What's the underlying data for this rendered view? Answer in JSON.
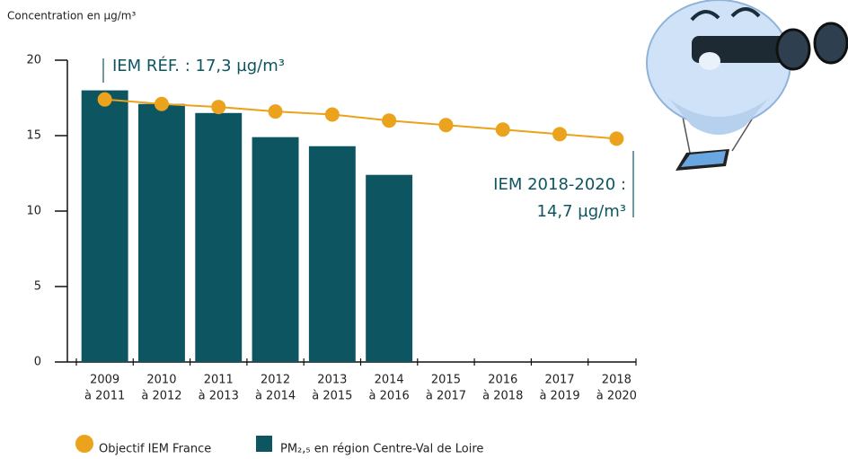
{
  "chart_data": {
    "type": "bar",
    "y_label": "Concentration en µg/m³",
    "categories": [
      [
        "2009",
        "à 2011"
      ],
      [
        "2010",
        "à 2012"
      ],
      [
        "2011",
        "à 2013"
      ],
      [
        "2012",
        "à 2014"
      ],
      [
        "2013",
        "à 2015"
      ],
      [
        "2014",
        "à 2016"
      ],
      [
        "2015",
        "à 2017"
      ],
      [
        "2016",
        "à 2018"
      ],
      [
        "2017",
        "à 2019"
      ],
      [
        "2018",
        "à 2020"
      ]
    ],
    "series": [
      {
        "name": "Objectif IEM France",
        "type": "line",
        "color": "#eba21c",
        "values": [
          17.4,
          17.1,
          16.9,
          16.6,
          16.4,
          16.0,
          15.7,
          15.4,
          15.1,
          14.8
        ]
      },
      {
        "name": "PM₂,₅ en région Centre-Val de Loire",
        "type": "bar",
        "color": "#0d5560",
        "values": [
          18.0,
          17.1,
          16.5,
          14.9,
          14.3,
          12.4,
          null,
          null,
          null,
          null
        ]
      }
    ],
    "annotations": [
      [
        "IEM RÉF. : 17,3 µg/m³"
      ],
      [
        "IEM 2018-2020 :",
        "14,7 µg/m³"
      ]
    ],
    "ylim": [
      0,
      20
    ],
    "yticks": [
      0,
      5,
      10,
      15,
      20
    ]
  }
}
